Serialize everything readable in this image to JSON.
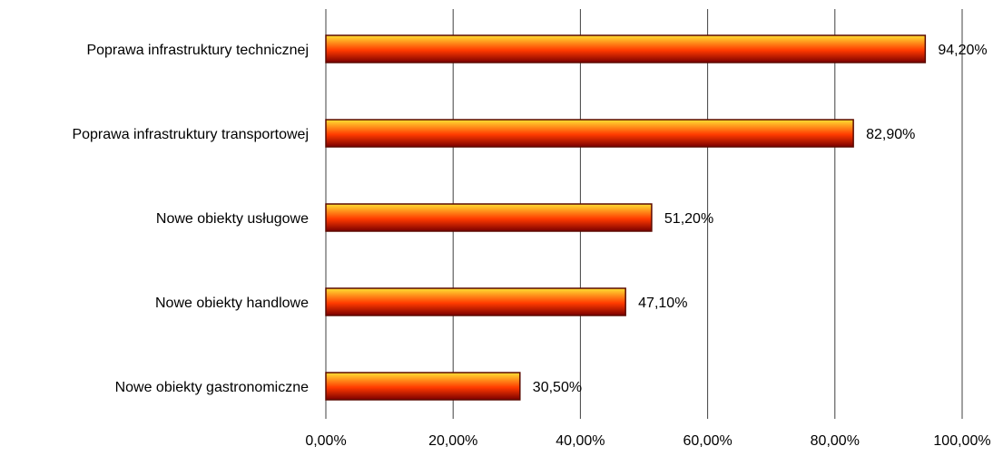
{
  "chart_data": {
    "type": "bar",
    "orientation": "horizontal",
    "categories": [
      "Poprawa infrastruktury technicznej",
      "Poprawa infrastruktury transportowej",
      "Nowe obiekty usługowe",
      "Nowe obiekty handlowe",
      "Nowe obiekty gastronomiczne"
    ],
    "values": [
      94.2,
      82.9,
      51.2,
      47.1,
      30.5
    ],
    "data_labels": [
      "94,20%",
      "82,90%",
      "51,20%",
      "47,10%",
      "30,50%"
    ],
    "x_ticks": [
      0,
      20,
      40,
      60,
      80,
      100
    ],
    "x_tick_labels": [
      "0,00%",
      "20,00%",
      "40,00%",
      "60,00%",
      "80,00%",
      "100,00%"
    ],
    "xlim": [
      0,
      100
    ],
    "title": "",
    "xlabel": "",
    "ylabel": "",
    "grid": "vertical",
    "legend": "none",
    "colors": {
      "bar_top": "#FFE033",
      "bar_mid": "#FF3A00",
      "bar_bottom": "#7A0000",
      "bar_outline": "#5C0A00",
      "grid": "#404040"
    }
  }
}
